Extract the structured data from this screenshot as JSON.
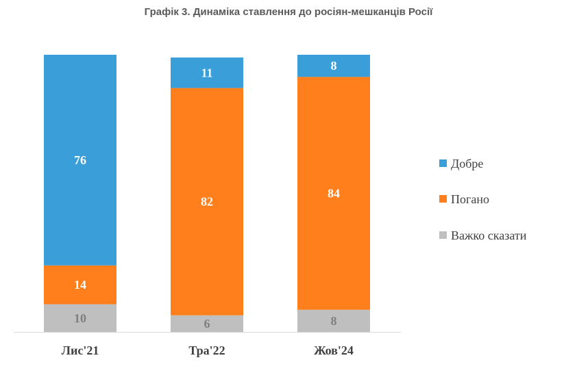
{
  "chart_data": {
    "type": "bar",
    "stacked": true,
    "title": "Графік 3. Динаміка ставлення до росіян-мешканців Росії",
    "categories": [
      "Лис'21",
      "Тра'22",
      "Жов'24"
    ],
    "series": [
      {
        "name": "Важко сказати",
        "values": [
          10,
          6,
          8
        ],
        "color": "#bfbfbf",
        "label_color": "#7f7f7f"
      },
      {
        "name": "Погано",
        "values": [
          14,
          82,
          84
        ],
        "color": "#ff7f1c",
        "label_color": "#ffffff"
      },
      {
        "name": "Добре",
        "values": [
          76,
          11,
          8
        ],
        "color": "#3a9ed8",
        "label_color": "#ffffff"
      }
    ],
    "legend_order": [
      "Добре",
      "Погано",
      "Важко сказати"
    ],
    "legend_position": "right",
    "ylim": [
      0,
      100
    ],
    "grid": false
  }
}
